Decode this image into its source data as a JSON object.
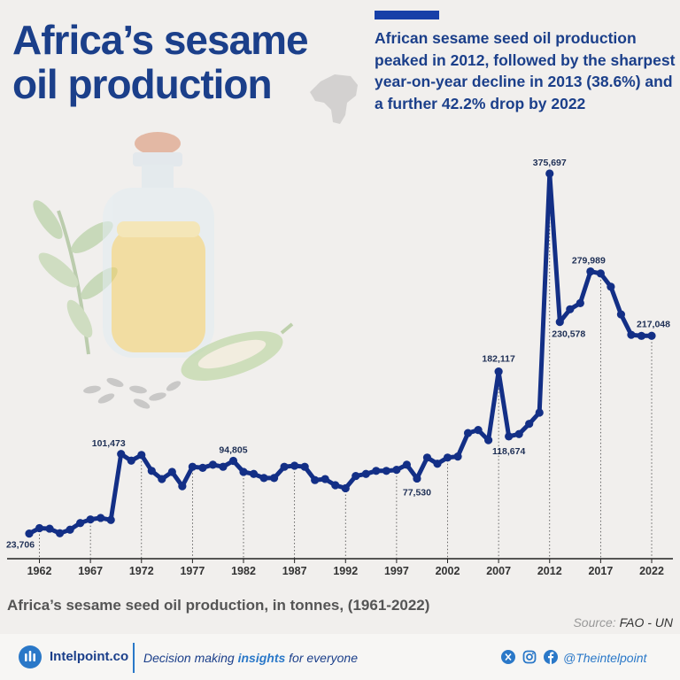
{
  "header": {
    "title": "Africa’s sesame oil production",
    "summary": "African sesame seed oil production peaked in 2012, followed by the sharpest year-on-year decline in 2013 (38.6%) and a further 42.2% drop by 2022"
  },
  "chart_data": {
    "type": "line",
    "subtitle": "Africa’s sesame seed oil production, in tonnes, (1961-2022)",
    "xlabel": "",
    "ylabel": "",
    "xlim": [
      1961,
      2022
    ],
    "ylim": [
      0,
      400000
    ],
    "xticks": [
      1962,
      1967,
      1972,
      1977,
      1982,
      1987,
      1992,
      1997,
      2002,
      2007,
      2012,
      2017,
      2022
    ],
    "x": [
      1961,
      1962,
      1963,
      1964,
      1965,
      1966,
      1967,
      1968,
      1969,
      1970,
      1971,
      1972,
      1973,
      1974,
      1975,
      1976,
      1977,
      1978,
      1979,
      1980,
      1981,
      1982,
      1983,
      1984,
      1985,
      1986,
      1987,
      1988,
      1989,
      1990,
      1991,
      1992,
      1993,
      1994,
      1995,
      1996,
      1997,
      1998,
      1999,
      2000,
      2001,
      2002,
      2003,
      2004,
      2005,
      2006,
      2007,
      2008,
      2009,
      2010,
      2011,
      2012,
      2013,
      2014,
      2015,
      2016,
      2017,
      2018,
      2019,
      2020,
      2021,
      2022
    ],
    "y": [
      23706,
      29000,
      28500,
      24000,
      27500,
      34000,
      37500,
      39000,
      37000,
      101473,
      95000,
      100500,
      85000,
      77000,
      84000,
      70000,
      89000,
      88000,
      91000,
      89000,
      94805,
      84000,
      82000,
      78000,
      78000,
      89000,
      90000,
      89000,
      76000,
      77000,
      71000,
      68000,
      80000,
      82000,
      85000,
      85000,
      86000,
      91000,
      77530,
      98000,
      92000,
      98000,
      99000,
      122000,
      125000,
      115000,
      182117,
      118674,
      121000,
      131000,
      142000,
      375697,
      230578,
      243000,
      249000,
      279989,
      278000,
      265000,
      238000,
      218000,
      217000,
      217048
    ],
    "data_labels": [
      {
        "x": 1961,
        "text": "23,706"
      },
      {
        "x": 1970,
        "text": "101,473"
      },
      {
        "x": 1981,
        "text": "94,805"
      },
      {
        "x": 1999,
        "text": "77,530"
      },
      {
        "x": 2007,
        "text": "182,117"
      },
      {
        "x": 2008,
        "text": "118,674"
      },
      {
        "x": 2012,
        "text": "375,697"
      },
      {
        "x": 2013,
        "text": "230,578"
      },
      {
        "x": 2016,
        "text": "279,989"
      },
      {
        "x": 2022,
        "text": "217,048"
      }
    ],
    "line_color": "#132f86",
    "grid": false
  },
  "source": {
    "label": "Source:",
    "name": "FAO - UN"
  },
  "footer": {
    "brand": "Intelpoint.co",
    "tagline_pre": "Decision making ",
    "tagline_em": "insights",
    "tagline_post": " for everyone",
    "handle": "@Theintelpoint",
    "icons": [
      "x-icon",
      "instagram-icon",
      "facebook-icon"
    ]
  },
  "illustration": {
    "items": [
      "oil-bottle",
      "sesame-leaves",
      "sesame-pod",
      "sesame-seeds",
      "africa-map"
    ]
  }
}
